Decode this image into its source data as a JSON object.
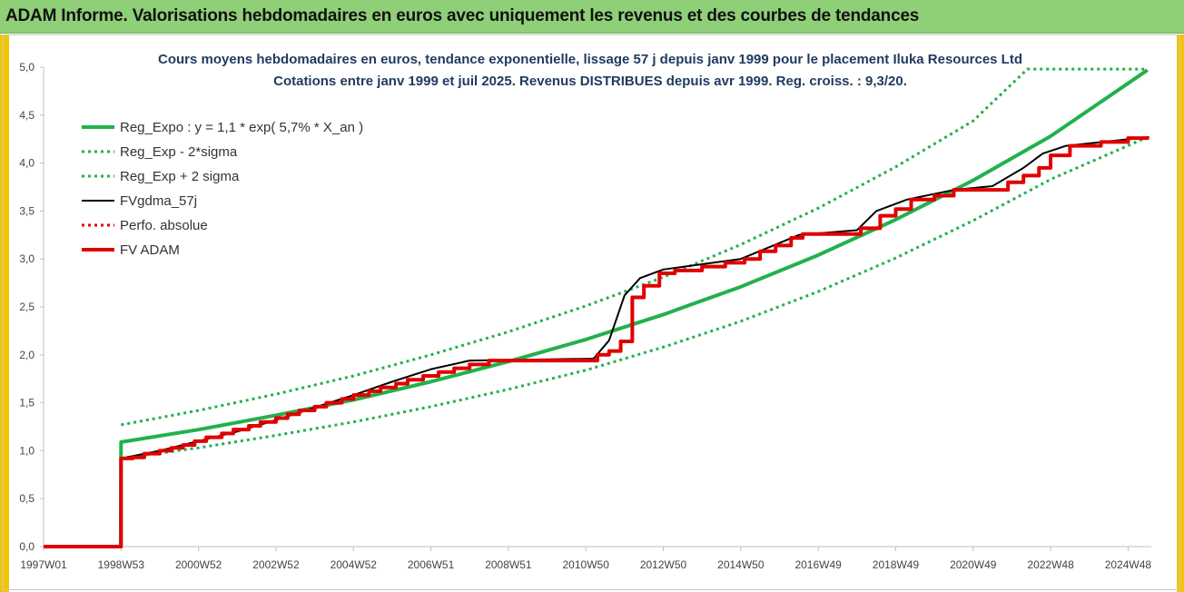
{
  "header": {
    "title": "ADAM Informe. Valorisations hebdomadaires en euros avec uniquement les revenus et des courbes de tendances"
  },
  "chart_data": {
    "type": "line",
    "title_lines": [
      "Cours moyens hebdomadaires en euros, tendance exponentielle, lissage 57 j depuis janv 1999  pour le placement Iluka Resources Ltd",
      "Cotations entre janv 1999 et juil 2025. Revenus DISTRIBUES depuis avr 1999.  Reg. croiss. : 9,3/20."
    ],
    "x_ticks": [
      "1997W01",
      "1998W53",
      "2000W52",
      "2002W52",
      "2004W52",
      "2006W51",
      "2008W51",
      "2010W50",
      "2012W50",
      "2014W50",
      "2016W49",
      "2018W49",
      "2020W49",
      "2022W48",
      "2024W48"
    ],
    "y_ticks": [
      "0,0",
      "0,5",
      "1,0",
      "1,5",
      "2,0",
      "2,5",
      "3,0",
      "3,5",
      "4,0",
      "4,5",
      "5,0"
    ],
    "ylim": [
      0,
      5
    ],
    "xlim": [
      1997.0,
      2025.6
    ],
    "grid": false,
    "legend_position": "top-left",
    "series": [
      {
        "name": "Reg_Expo : y = 1,1 * exp( 5,7% *  X_an )",
        "color": "#22b14c",
        "style": "solid",
        "points": [
          [
            1997.0,
            0
          ],
          [
            1998.99,
            0
          ],
          [
            1999.0,
            1.09
          ],
          [
            2001,
            1.22
          ],
          [
            2003,
            1.37
          ],
          [
            2005,
            1.53
          ],
          [
            2007,
            1.72
          ],
          [
            2009,
            1.93
          ],
          [
            2011,
            2.16
          ],
          [
            2013,
            2.42
          ],
          [
            2015,
            2.71
          ],
          [
            2017,
            3.04
          ],
          [
            2019,
            3.41
          ],
          [
            2021,
            3.82
          ],
          [
            2023,
            4.28
          ],
          [
            2025.5,
            4.97
          ]
        ]
      },
      {
        "name": "Reg_Exp - 2*sigma",
        "color": "#22b14c",
        "style": "dotted",
        "points": [
          [
            1999.0,
            0.92
          ],
          [
            2001,
            1.03
          ],
          [
            2003,
            1.16
          ],
          [
            2005,
            1.3
          ],
          [
            2007,
            1.46
          ],
          [
            2009,
            1.64
          ],
          [
            2011,
            1.84
          ],
          [
            2013,
            2.08
          ],
          [
            2015,
            2.35
          ],
          [
            2017,
            2.66
          ],
          [
            2019,
            3.01
          ],
          [
            2021,
            3.4
          ],
          [
            2023,
            3.83
          ],
          [
            2025.5,
            4.27
          ]
        ]
      },
      {
        "name": "Reg_Exp + 2 sigma",
        "color": "#22b14c",
        "style": "dotted",
        "points": [
          [
            1999.0,
            1.27
          ],
          [
            2001,
            1.42
          ],
          [
            2003,
            1.59
          ],
          [
            2005,
            1.78
          ],
          [
            2007,
            2.0
          ],
          [
            2009,
            2.24
          ],
          [
            2011,
            2.51
          ],
          [
            2013,
            2.81
          ],
          [
            2015,
            3.15
          ],
          [
            2017,
            3.53
          ],
          [
            2019,
            3.96
          ],
          [
            2021,
            4.44
          ],
          [
            2022.4,
            4.98
          ],
          [
            2025.5,
            4.98
          ]
        ]
      },
      {
        "name": "FVgdma_57j",
        "color": "#000000",
        "style": "solid",
        "points": [
          [
            1997.0,
            0
          ],
          [
            1998.99,
            0
          ],
          [
            1999.0,
            0.92
          ],
          [
            2000.0,
            1.0
          ],
          [
            2001.0,
            1.1
          ],
          [
            2002.0,
            1.2
          ],
          [
            2003.0,
            1.32
          ],
          [
            2004.0,
            1.45
          ],
          [
            2005.0,
            1.58
          ],
          [
            2006.0,
            1.72
          ],
          [
            2007.0,
            1.85
          ],
          [
            2008.0,
            1.94
          ],
          [
            2011.2,
            1.96
          ],
          [
            2011.6,
            2.15
          ],
          [
            2012.0,
            2.62
          ],
          [
            2012.4,
            2.8
          ],
          [
            2013.0,
            2.89
          ],
          [
            2015.0,
            3.0
          ],
          [
            2016.5,
            3.25
          ],
          [
            2018.0,
            3.3
          ],
          [
            2018.5,
            3.5
          ],
          [
            2019.3,
            3.62
          ],
          [
            2020.5,
            3.72
          ],
          [
            2021.5,
            3.76
          ],
          [
            2022.3,
            3.95
          ],
          [
            2022.8,
            4.1
          ],
          [
            2023.4,
            4.18
          ],
          [
            2025.5,
            4.27
          ]
        ]
      },
      {
        "name": "Perfo. absolue",
        "color": "#e00000",
        "style": "dotted",
        "points": []
      },
      {
        "name": "FV ADAM",
        "color": "#e00000",
        "style": "steps",
        "points": [
          [
            1997.0,
            0
          ],
          [
            1998.99,
            0
          ],
          [
            1999.0,
            0.92
          ],
          [
            1999.3,
            0.93
          ],
          [
            1999.6,
            0.97
          ],
          [
            2000.0,
            1.0
          ],
          [
            2000.3,
            1.03
          ],
          [
            2000.6,
            1.06
          ],
          [
            2000.9,
            1.1
          ],
          [
            2001.2,
            1.14
          ],
          [
            2001.6,
            1.18
          ],
          [
            2001.9,
            1.22
          ],
          [
            2002.3,
            1.26
          ],
          [
            2002.6,
            1.3
          ],
          [
            2003.0,
            1.34
          ],
          [
            2003.3,
            1.38
          ],
          [
            2003.6,
            1.42
          ],
          [
            2004.0,
            1.46
          ],
          [
            2004.3,
            1.5
          ],
          [
            2004.7,
            1.54
          ],
          [
            2005.0,
            1.58
          ],
          [
            2005.4,
            1.62
          ],
          [
            2005.7,
            1.66
          ],
          [
            2006.1,
            1.7
          ],
          [
            2006.4,
            1.74
          ],
          [
            2006.8,
            1.78
          ],
          [
            2007.2,
            1.82
          ],
          [
            2007.6,
            1.86
          ],
          [
            2008.0,
            1.9
          ],
          [
            2008.5,
            1.94
          ],
          [
            2011.2,
            1.94
          ],
          [
            2011.3,
            2.0
          ],
          [
            2011.6,
            2.04
          ],
          [
            2011.9,
            2.14
          ],
          [
            2012.2,
            2.6
          ],
          [
            2012.5,
            2.72
          ],
          [
            2012.9,
            2.85
          ],
          [
            2013.3,
            2.88
          ],
          [
            2014.0,
            2.92
          ],
          [
            2014.6,
            2.96
          ],
          [
            2015.1,
            3.0
          ],
          [
            2015.5,
            3.08
          ],
          [
            2015.9,
            3.14
          ],
          [
            2016.3,
            3.22
          ],
          [
            2016.6,
            3.26
          ],
          [
            2017.8,
            3.26
          ],
          [
            2018.1,
            3.32
          ],
          [
            2018.6,
            3.45
          ],
          [
            2019.0,
            3.52
          ],
          [
            2019.4,
            3.62
          ],
          [
            2020.0,
            3.66
          ],
          [
            2020.5,
            3.72
          ],
          [
            2021.6,
            3.72
          ],
          [
            2021.9,
            3.8
          ],
          [
            2022.3,
            3.87
          ],
          [
            2022.7,
            3.95
          ],
          [
            2023.0,
            4.08
          ],
          [
            2023.5,
            4.18
          ],
          [
            2024.3,
            4.22
          ],
          [
            2025.0,
            4.26
          ],
          [
            2025.5,
            4.28
          ]
        ]
      }
    ]
  }
}
